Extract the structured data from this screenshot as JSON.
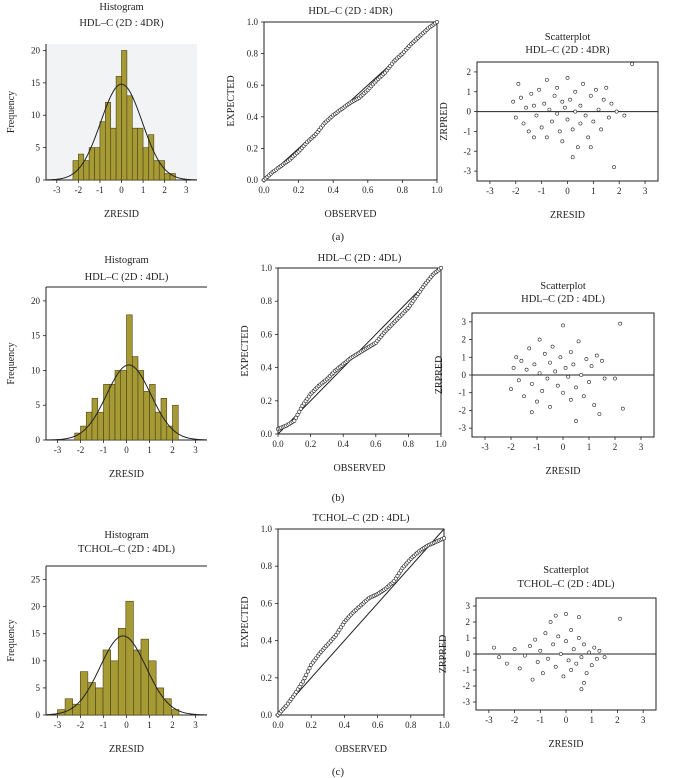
{
  "figure": {
    "panel_labels": [
      "(a)",
      "(b)",
      "(c)"
    ],
    "colors": {
      "bar_fill": "#a69a35",
      "bar_stroke": "#4a4218",
      "hist_bg_a": "#f1f3f5",
      "ink": "#222222"
    }
  },
  "chart_data": [
    {
      "id": "a_hist",
      "type": "bar",
      "title": "Histogram",
      "subtitle": "HDL–C (2D : 4DR)",
      "xlabel": "ZRESID",
      "ylabel": "Frequency",
      "xlim": [
        -3.5,
        3.5
      ],
      "ylim": [
        0,
        21
      ],
      "xticks": [
        -3,
        -2,
        -1,
        0,
        1,
        2,
        3
      ],
      "yticks": [
        0,
        5,
        10,
        15,
        20
      ],
      "bin_width": 0.25,
      "bin_starts": [
        -2.25,
        -2.0,
        -1.75,
        -1.5,
        -1.25,
        -1.0,
        -0.75,
        -0.5,
        -0.25,
        0.0,
        0.25,
        0.5,
        0.75,
        1.0,
        1.25,
        1.5,
        1.75,
        2.0,
        2.25
      ],
      "values": [
        3,
        4,
        3,
        5,
        5,
        9,
        12,
        8,
        16,
        20,
        13,
        8,
        8,
        5,
        7,
        3,
        3,
        1,
        1
      ],
      "normal_curve": {
        "mean": 0,
        "sd": 0.96,
        "peak": 14.8
      }
    },
    {
      "id": "a_pp",
      "type": "line",
      "title": "HDL–C (2D : 4DR)",
      "xlabel": "OBSERVED",
      "ylabel": "EXPECTED",
      "xlim": [
        0,
        1
      ],
      "ylim": [
        0,
        1
      ],
      "xticks": [
        0.0,
        0.2,
        0.4,
        0.6,
        0.8,
        1.0
      ],
      "yticks": [
        0.0,
        0.2,
        0.4,
        0.6,
        0.8,
        1.0
      ],
      "reference_line": [
        [
          0,
          0
        ],
        [
          1,
          1
        ]
      ],
      "points": [
        [
          0.0,
          0.0
        ],
        [
          0.05,
          0.05
        ],
        [
          0.1,
          0.09
        ],
        [
          0.15,
          0.13
        ],
        [
          0.2,
          0.18
        ],
        [
          0.25,
          0.24
        ],
        [
          0.3,
          0.29
        ],
        [
          0.35,
          0.36
        ],
        [
          0.4,
          0.41
        ],
        [
          0.45,
          0.45
        ],
        [
          0.5,
          0.49
        ],
        [
          0.55,
          0.52
        ],
        [
          0.6,
          0.57
        ],
        [
          0.65,
          0.63
        ],
        [
          0.7,
          0.68
        ],
        [
          0.75,
          0.75
        ],
        [
          0.8,
          0.8
        ],
        [
          0.85,
          0.86
        ],
        [
          0.9,
          0.91
        ],
        [
          0.95,
          0.96
        ],
        [
          1.0,
          1.0
        ]
      ]
    },
    {
      "id": "a_scatter",
      "type": "scatter",
      "title": "Scatterplot",
      "subtitle": "HDL–C (2D : 4DR)",
      "xlabel": "ZRESID",
      "ylabel": "ZRPRED",
      "xlim": [
        -3.5,
        3.5
      ],
      "ylim": [
        -3.5,
        2.5
      ],
      "xticks": [
        -3,
        -2,
        -1,
        0,
        1,
        2,
        3
      ],
      "yticks": [
        -3,
        -2,
        -1,
        0,
        1,
        2
      ],
      "zero_line": 0,
      "points": [
        [
          -2.1,
          0.5
        ],
        [
          -2.0,
          -0.3
        ],
        [
          -1.9,
          1.4
        ],
        [
          -1.8,
          0.7
        ],
        [
          -1.7,
          -0.6
        ],
        [
          -1.6,
          0.2
        ],
        [
          -1.5,
          -1.0
        ],
        [
          -1.4,
          0.9
        ],
        [
          -1.3,
          0.3
        ],
        [
          -1.2,
          -0.2
        ],
        [
          -1.1,
          1.1
        ],
        [
          -1.0,
          -0.8
        ],
        [
          -0.9,
          0.4
        ],
        [
          -0.8,
          1.6
        ],
        [
          -0.8,
          -1.3
        ],
        [
          -0.7,
          0.1
        ],
        [
          -0.6,
          -0.5
        ],
        [
          -0.5,
          0.8
        ],
        [
          -0.4,
          1.2
        ],
        [
          -0.4,
          -0.1
        ],
        [
          -0.3,
          -1.0
        ],
        [
          -0.2,
          0.5
        ],
        [
          -0.2,
          -1.5
        ],
        [
          -0.1,
          0.2
        ],
        [
          0.0,
          1.7
        ],
        [
          0.0,
          -0.4
        ],
        [
          0.1,
          0.6
        ],
        [
          0.2,
          -0.9
        ],
        [
          0.3,
          1.0
        ],
        [
          0.3,
          0.0
        ],
        [
          0.4,
          -1.8
        ],
        [
          0.5,
          0.3
        ],
        [
          0.5,
          -0.6
        ],
        [
          0.6,
          1.4
        ],
        [
          0.7,
          -0.2
        ],
        [
          0.8,
          -1.3
        ],
        [
          0.9,
          0.8
        ],
        [
          1.0,
          -0.5
        ],
        [
          1.1,
          1.1
        ],
        [
          1.2,
          0.1
        ],
        [
          1.3,
          -0.9
        ],
        [
          1.4,
          0.6
        ],
        [
          1.5,
          1.2
        ],
        [
          1.6,
          -0.3
        ],
        [
          1.7,
          0.4
        ],
        [
          1.8,
          -2.8
        ],
        [
          1.9,
          0.0
        ],
        [
          2.2,
          -0.2
        ],
        [
          2.5,
          2.4
        ],
        [
          -1.3,
          -1.3
        ],
        [
          0.2,
          -2.3
        ],
        [
          0.9,
          -1.8
        ]
      ]
    },
    {
      "id": "b_hist",
      "type": "bar",
      "title": "Histogram",
      "subtitle": "HDL–C (2D : 4DL)",
      "xlabel": "ZRESID",
      "ylabel": "Frequency",
      "xlim": [
        -3.5,
        3.5
      ],
      "ylim": [
        0,
        22
      ],
      "xticks": [
        -3,
        -2,
        -1,
        0,
        1,
        2,
        3
      ],
      "yticks": [
        0,
        5,
        10,
        15,
        20
      ],
      "bin_width": 0.25,
      "bin_starts": [
        -2.25,
        -2.0,
        -1.75,
        -1.5,
        -1.25,
        -1.0,
        -0.75,
        -0.5,
        -0.25,
        0.0,
        0.25,
        0.5,
        0.75,
        1.0,
        1.25,
        1.5,
        1.75,
        2.0
      ],
      "values": [
        1,
        2,
        4,
        6,
        4,
        8,
        8,
        10,
        10,
        18,
        12,
        10,
        7,
        8,
        4,
        6,
        2,
        5
      ],
      "normal_curve": {
        "mean": 0.1,
        "sd": 0.96,
        "peak": 10.8
      }
    },
    {
      "id": "b_pp",
      "type": "line",
      "title": "HDL–C (2D : 4DL)",
      "xlabel": "OBSERVED",
      "ylabel": "EXPECTED",
      "xlim": [
        0,
        1
      ],
      "ylim": [
        0,
        1
      ],
      "xticks": [
        0.0,
        0.2,
        0.4,
        0.6,
        0.8,
        1.0
      ],
      "yticks": [
        0.0,
        0.2,
        0.4,
        0.6,
        0.8,
        1.0
      ],
      "reference_line": [
        [
          0,
          0
        ],
        [
          1,
          1
        ]
      ],
      "points": [
        [
          0.0,
          0.03
        ],
        [
          0.05,
          0.05
        ],
        [
          0.1,
          0.08
        ],
        [
          0.15,
          0.17
        ],
        [
          0.2,
          0.24
        ],
        [
          0.25,
          0.29
        ],
        [
          0.3,
          0.33
        ],
        [
          0.35,
          0.38
        ],
        [
          0.4,
          0.42
        ],
        [
          0.45,
          0.46
        ],
        [
          0.5,
          0.49
        ],
        [
          0.55,
          0.52
        ],
        [
          0.6,
          0.55
        ],
        [
          0.65,
          0.61
        ],
        [
          0.7,
          0.66
        ],
        [
          0.75,
          0.71
        ],
        [
          0.8,
          0.76
        ],
        [
          0.85,
          0.83
        ],
        [
          0.9,
          0.9
        ],
        [
          0.95,
          0.96
        ],
        [
          1.0,
          1.0
        ]
      ]
    },
    {
      "id": "b_scatter",
      "type": "scatter",
      "title": "Scatterplot",
      "subtitle": "HDL–C (2D : 4DL)",
      "xlabel": "ZRESID",
      "ylabel": "ZRPRED",
      "xlim": [
        -3.5,
        3.5
      ],
      "ylim": [
        -3.5,
        3.5
      ],
      "xticks": [
        -3,
        -2,
        -1,
        0,
        1,
        2,
        3
      ],
      "yticks": [
        -3,
        -2,
        -1,
        0,
        1,
        2,
        3
      ],
      "zero_line": 0,
      "points": [
        [
          -2.0,
          -0.8
        ],
        [
          -1.9,
          0.4
        ],
        [
          -1.8,
          1.0
        ],
        [
          -1.7,
          -0.3
        ],
        [
          -1.6,
          0.8
        ],
        [
          -1.5,
          -1.2
        ],
        [
          -1.4,
          0.3
        ],
        [
          -1.3,
          1.5
        ],
        [
          -1.2,
          -0.5
        ],
        [
          -1.1,
          0.6
        ],
        [
          -1.0,
          -1.5
        ],
        [
          -0.9,
          2.0
        ],
        [
          -0.9,
          0.1
        ],
        [
          -0.8,
          -0.9
        ],
        [
          -0.7,
          1.2
        ],
        [
          -0.6,
          -0.2
        ],
        [
          -0.5,
          0.7
        ],
        [
          -0.5,
          -1.8
        ],
        [
          -0.4,
          1.6
        ],
        [
          -0.3,
          0.2
        ],
        [
          -0.2,
          -0.6
        ],
        [
          -0.1,
          1.0
        ],
        [
          0.0,
          -1.0
        ],
        [
          0.0,
          2.8
        ],
        [
          0.1,
          0.4
        ],
        [
          0.2,
          -0.1
        ],
        [
          0.3,
          1.3
        ],
        [
          0.3,
          -1.4
        ],
        [
          0.4,
          0.6
        ],
        [
          0.5,
          -0.7
        ],
        [
          0.6,
          1.9
        ],
        [
          0.7,
          0.0
        ],
        [
          0.8,
          -1.2
        ],
        [
          0.9,
          0.9
        ],
        [
          1.0,
          -0.4
        ],
        [
          1.1,
          0.5
        ],
        [
          1.2,
          -1.7
        ],
        [
          1.3,
          1.1
        ],
        [
          1.4,
          -2.2
        ],
        [
          1.5,
          0.8
        ],
        [
          1.6,
          -0.2
        ],
        [
          2.0,
          -0.2
        ],
        [
          2.2,
          2.9
        ],
        [
          2.3,
          -1.9
        ],
        [
          -1.2,
          -2.1
        ],
        [
          0.5,
          -2.6
        ]
      ]
    },
    {
      "id": "c_hist",
      "type": "bar",
      "title": "Histogram",
      "subtitle": "TCHOL–C (2D : 4DL)",
      "xlabel": "ZRESID",
      "ylabel": "Frequency",
      "xlim": [
        -3.5,
        3.5
      ],
      "ylim": [
        0,
        27.5
      ],
      "xticks": [
        -3,
        -2,
        -1,
        0,
        1,
        2,
        3
      ],
      "yticks": [
        0,
        5,
        10,
        15,
        20,
        25
      ],
      "bin_width": 0.33,
      "bin_starts": [
        -3.0,
        -2.67,
        -2.34,
        -2.01,
        -1.68,
        -1.35,
        -1.02,
        -0.69,
        -0.36,
        -0.03,
        0.3,
        0.63,
        0.96,
        1.29,
        1.62,
        1.95
      ],
      "values": [
        1,
        3,
        2,
        8,
        6,
        5,
        12,
        10,
        16,
        21,
        12,
        14,
        10,
        5,
        3,
        1
      ],
      "normal_curve": {
        "mean": -0.15,
        "sd": 1.0,
        "peak": 14.6
      }
    },
    {
      "id": "c_pp",
      "type": "line",
      "title": "TCHOL–C (2D : 4DL)",
      "xlabel": "OBSERVED",
      "ylabel": "EXPECTED",
      "xlim": [
        0,
        1
      ],
      "ylim": [
        0,
        1
      ],
      "xticks": [
        0.0,
        0.2,
        0.4,
        0.6,
        0.8,
        1.0
      ],
      "yticks": [
        0.0,
        0.2,
        0.4,
        0.6,
        0.8,
        1.0
      ],
      "reference_line": [
        [
          0,
          0
        ],
        [
          1,
          1
        ]
      ],
      "points": [
        [
          0.0,
          0.0
        ],
        [
          0.05,
          0.05
        ],
        [
          0.1,
          0.11
        ],
        [
          0.15,
          0.18
        ],
        [
          0.2,
          0.27
        ],
        [
          0.25,
          0.33
        ],
        [
          0.3,
          0.38
        ],
        [
          0.35,
          0.43
        ],
        [
          0.4,
          0.5
        ],
        [
          0.45,
          0.55
        ],
        [
          0.5,
          0.59
        ],
        [
          0.55,
          0.63
        ],
        [
          0.6,
          0.65
        ],
        [
          0.65,
          0.68
        ],
        [
          0.7,
          0.72
        ],
        [
          0.75,
          0.79
        ],
        [
          0.8,
          0.84
        ],
        [
          0.85,
          0.88
        ],
        [
          0.9,
          0.91
        ],
        [
          0.95,
          0.93
        ],
        [
          1.0,
          0.95
        ]
      ]
    },
    {
      "id": "c_scatter",
      "type": "scatter",
      "title": "Scatterplot",
      "subtitle": "TCHOL–C (2D : 4DL)",
      "xlabel": "ZRESID",
      "ylabel": "ZRPRED",
      "xlim": [
        -3.5,
        3.5
      ],
      "ylim": [
        -3.5,
        3.5
      ],
      "xticks": [
        -3,
        -2,
        -1,
        0,
        1,
        2,
        3
      ],
      "yticks": [
        -3,
        -2,
        -1,
        0,
        1,
        2,
        3
      ],
      "zero_line": 0,
      "points": [
        [
          -2.8,
          0.4
        ],
        [
          -2.6,
          -0.2
        ],
        [
          -2.3,
          -0.6
        ],
        [
          -2.0,
          0.3
        ],
        [
          -1.8,
          -0.9
        ],
        [
          -1.6,
          -0.1
        ],
        [
          -1.4,
          0.5
        ],
        [
          -1.3,
          -1.6
        ],
        [
          -1.2,
          0.9
        ],
        [
          -1.1,
          -0.5
        ],
        [
          -1.0,
          0.2
        ],
        [
          -0.9,
          -1.2
        ],
        [
          -0.8,
          1.3
        ],
        [
          -0.7,
          -0.3
        ],
        [
          -0.6,
          2.0
        ],
        [
          -0.5,
          0.6
        ],
        [
          -0.4,
          -0.8
        ],
        [
          -0.3,
          1.1
        ],
        [
          -0.2,
          0.0
        ],
        [
          -0.1,
          -1.4
        ],
        [
          0.0,
          0.8
        ],
        [
          0.0,
          2.5
        ],
        [
          0.1,
          -0.4
        ],
        [
          0.2,
          1.5
        ],
        [
          0.2,
          -1.0
        ],
        [
          0.3,
          0.3
        ],
        [
          0.4,
          -0.6
        ],
        [
          0.5,
          1.0
        ],
        [
          0.5,
          2.3
        ],
        [
          0.6,
          -0.2
        ],
        [
          0.7,
          0.6
        ],
        [
          0.8,
          -1.2
        ],
        [
          0.9,
          0.1
        ],
        [
          1.0,
          -0.7
        ],
        [
          1.1,
          0.4
        ],
        [
          1.2,
          -0.3
        ],
        [
          1.3,
          0.2
        ],
        [
          1.5,
          -0.2
        ],
        [
          2.1,
          2.2
        ],
        [
          0.6,
          -2.2
        ],
        [
          -0.4,
          2.4
        ],
        [
          0.7,
          -1.8
        ]
      ]
    }
  ]
}
